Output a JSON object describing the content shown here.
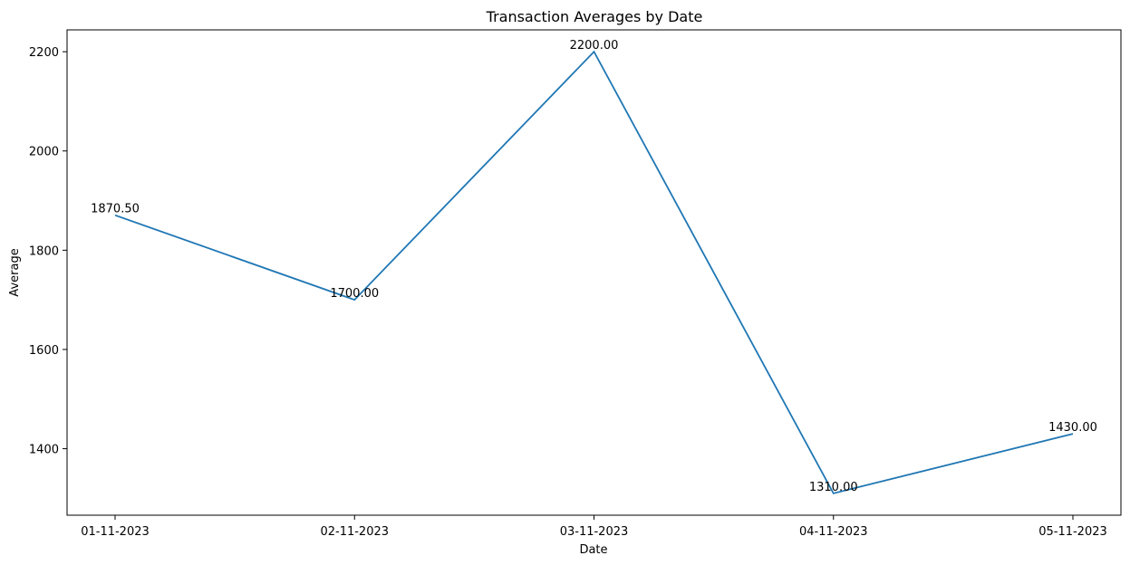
{
  "chart_data": {
    "type": "line",
    "title": "Transaction Averages by Date",
    "xlabel": "Date",
    "ylabel": "Average",
    "categories": [
      "01-11-2023",
      "02-11-2023",
      "03-11-2023",
      "04-11-2023",
      "05-11-2023"
    ],
    "series": [
      {
        "values": [
          1870.5,
          1700.0,
          2200.0,
          1310.0,
          1430.0
        ],
        "color": "#1f77b4"
      }
    ],
    "data_labels": [
      "1870.50",
      "1700.00",
      "2200.00",
      "1310.00",
      "1430.00"
    ],
    "yticks": [
      1400,
      1600,
      1800,
      2000,
      2200
    ],
    "ylim": [
      1266,
      2244
    ],
    "grid": false,
    "legend": "none"
  }
}
